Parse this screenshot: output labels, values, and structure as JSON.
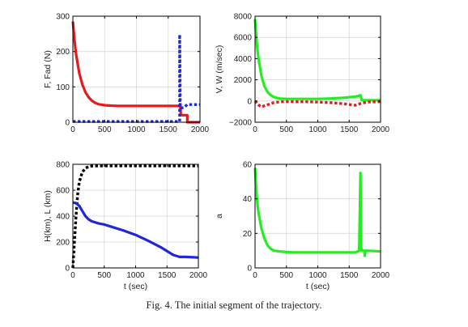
{
  "caption": "Fig. 4. The initial segment of the trajectory.",
  "colors": {
    "red": "#e21b1b",
    "blue": "#1f27d6",
    "green": "#22ee22",
    "black": "#000000",
    "grid": "#d8d8d8"
  },
  "chart_data": [
    {
      "type": "line",
      "ylabel": "F, Fad (N)",
      "xlabel": "",
      "xlim": [
        0,
        2000
      ],
      "ylim": [
        0,
        300
      ],
      "xticks": [
        0,
        500,
        1000,
        1500,
        2000
      ],
      "yticks": [
        0,
        100,
        200,
        300
      ],
      "grid": true,
      "series": [
        {
          "style": "solid",
          "color": "#e21b1b",
          "x": [
            0,
            25,
            50,
            100,
            150,
            200,
            250,
            300,
            350,
            400,
            500,
            600,
            700,
            800,
            1000,
            1200,
            1400,
            1600,
            1650,
            1690,
            1700,
            1800,
            1800,
            2000
          ],
          "y": [
            285,
            232,
            193,
            140,
            106,
            84,
            70,
            61,
            55,
            51,
            48,
            47,
            46,
            46,
            46,
            46,
            46,
            46,
            46,
            46,
            20,
            20,
            0,
            0
          ]
        },
        {
          "style": "dotted",
          "color": "#1f27d6",
          "x": [
            0,
            400,
            800,
            1200,
            1600,
            1650,
            1680,
            1680,
            1690,
            1700,
            1750,
            1800,
            1900,
            2000
          ],
          "y": [
            2,
            2,
            2,
            2,
            2,
            2,
            2,
            248,
            45,
            40,
            42,
            50,
            50,
            50
          ]
        }
      ]
    },
    {
      "type": "line",
      "ylabel": "V, W (m/sec)",
      "xlabel": "",
      "xlim": [
        0,
        2000
      ],
      "ylim": [
        -2000,
        8000
      ],
      "xticks": [
        0,
        500,
        1000,
        1500,
        2000
      ],
      "yticks": [
        -2000,
        0,
        2000,
        4000,
        6000,
        8000
      ],
      "grid": true,
      "series": [
        {
          "style": "solid",
          "color": "#22ee22",
          "x": [
            0,
            25,
            50,
            100,
            150,
            200,
            250,
            300,
            350,
            400,
            500,
            600,
            800,
            1000,
            1200,
            1400,
            1600,
            1650,
            1680,
            1700,
            1800,
            2000
          ],
          "y": [
            7700,
            5600,
            4200,
            2400,
            1400,
            850,
            550,
            380,
            280,
            220,
            200,
            200,
            200,
            200,
            240,
            300,
            420,
            480,
            540,
            80,
            80,
            80
          ]
        },
        {
          "style": "dotted",
          "color": "#e21b1b",
          "x": [
            0,
            50,
            100,
            200,
            300,
            400,
            500,
            600,
            800,
            1000,
            1200,
            1400,
            1600,
            1700,
            1800,
            2000
          ],
          "y": [
            0,
            -350,
            -550,
            -350,
            -150,
            -70,
            -50,
            -60,
            -70,
            -100,
            -150,
            -250,
            -400,
            -200,
            -100,
            -50
          ]
        }
      ]
    },
    {
      "type": "line",
      "ylabel": "H(km), L (km)",
      "xlabel": "t (sec)",
      "xlim": [
        0,
        2000
      ],
      "ylim": [
        0,
        800
      ],
      "xticks": [
        0,
        500,
        1000,
        1500,
        2000
      ],
      "yticks": [
        0,
        200,
        400,
        600,
        800
      ],
      "grid": true,
      "series": [
        {
          "style": "dotted",
          "color": "#000000",
          "x": [
            0,
            25,
            50,
            75,
            100,
            150,
            200,
            250,
            300,
            400,
            600,
            1000,
            1500,
            2000
          ],
          "y": [
            0,
            200,
            400,
            560,
            660,
            740,
            770,
            782,
            786,
            788,
            788,
            788,
            788,
            788
          ]
        },
        {
          "style": "solid",
          "color": "#1f27d6",
          "x": [
            0,
            50,
            100,
            150,
            200,
            250,
            300,
            400,
            500,
            600,
            800,
            1000,
            1200,
            1400,
            1500,
            1600,
            1700,
            1800,
            2000
          ],
          "y": [
            505,
            500,
            480,
            440,
            400,
            375,
            360,
            345,
            335,
            320,
            290,
            255,
            210,
            160,
            130,
            100,
            85,
            85,
            80
          ]
        }
      ]
    },
    {
      "type": "line",
      "ylabel": "a",
      "xlabel": "t (sec)",
      "xlim": [
        0,
        2000
      ],
      "ylim": [
        0,
        60
      ],
      "xticks": [
        0,
        500,
        1000,
        1500,
        2000
      ],
      "yticks": [
        0,
        20,
        40,
        60
      ],
      "grid": true,
      "series": [
        {
          "style": "solid",
          "color": "#22ee22",
          "x": [
            0,
            25,
            50,
            100,
            150,
            200,
            250,
            300,
            400,
            500,
            600,
            800,
            1000,
            1200,
            1400,
            1600,
            1660,
            1680,
            1690,
            1700,
            1720,
            1740,
            1750,
            1760,
            1800,
            2000
          ],
          "y": [
            58,
            42,
            33,
            23,
            17,
            13,
            11,
            10,
            9.5,
            9.2,
            9,
            9,
            9,
            9,
            9,
            9,
            10,
            55,
            12,
            10,
            10,
            10,
            7,
            10,
            10,
            9.5
          ]
        }
      ]
    }
  ]
}
